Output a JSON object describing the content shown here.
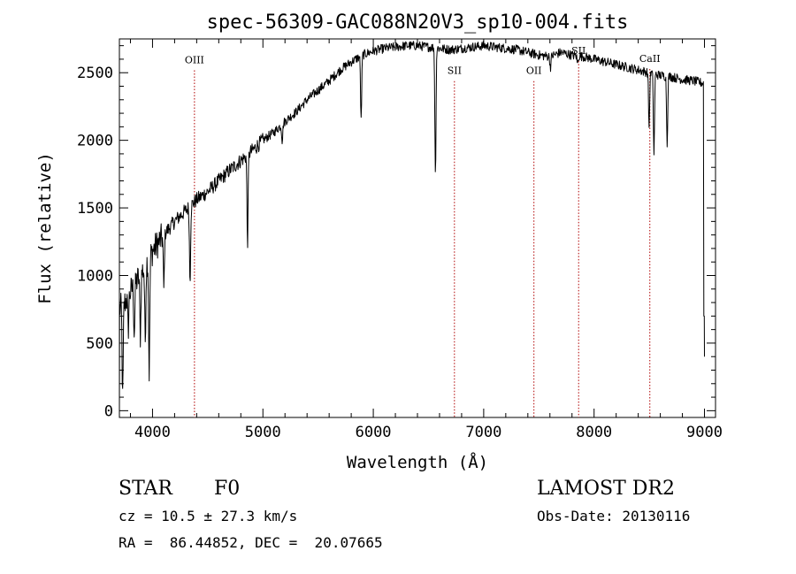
{
  "chart_data": {
    "type": "line",
    "title": "spec-56309-GAC088N20V3_sp10-004.fits",
    "xlabel": "Wavelength (Å)",
    "ylabel": "Flux (relative)",
    "xlim": [
      3700,
      9100
    ],
    "ylim": [
      -50,
      2750
    ],
    "xticks": [
      4000,
      5000,
      6000,
      7000,
      8000,
      9000
    ],
    "yticks": [
      0,
      500,
      1000,
      1500,
      2000,
      2500
    ],
    "grid": false,
    "continuum": {
      "x": [
        3700,
        3750,
        3800,
        3850,
        3900,
        3950,
        4000,
        4100,
        4200,
        4300,
        4400,
        4500,
        4600,
        4700,
        4800,
        4900,
        5000,
        5100,
        5200,
        5300,
        5400,
        5500,
        5600,
        5700,
        5800,
        5900,
        6000,
        6100,
        6200,
        6300,
        6400,
        6500,
        6600,
        6700,
        6800,
        6900,
        7000,
        7100,
        7200,
        7300,
        7400,
        7500,
        7600,
        7700,
        7800,
        7900,
        8000,
        8100,
        8200,
        8300,
        8400,
        8500,
        8600,
        8700,
        8800,
        8900,
        8950,
        9000
      ],
      "y": [
        750,
        800,
        880,
        950,
        1020,
        1100,
        1180,
        1300,
        1400,
        1480,
        1560,
        1620,
        1700,
        1780,
        1850,
        1920,
        2000,
        2060,
        2140,
        2210,
        2300,
        2370,
        2440,
        2520,
        2580,
        2630,
        2660,
        2680,
        2690,
        2700,
        2700,
        2690,
        2680,
        2670,
        2680,
        2690,
        2700,
        2690,
        2680,
        2670,
        2650,
        2630,
        2620,
        2650,
        2630,
        2620,
        2600,
        2580,
        2560,
        2540,
        2520,
        2500,
        2480,
        2470,
        2450,
        2440,
        2430,
        2420
      ]
    },
    "absorption_lines": [
      {
        "x": 3730,
        "depth": 700
      },
      {
        "x": 3780,
        "depth": 250
      },
      {
        "x": 3835,
        "depth": 350
      },
      {
        "x": 3890,
        "depth": 450
      },
      {
        "x": 3934,
        "depth": 550
      },
      {
        "x": 3970,
        "depth": 850
      },
      {
        "x": 4102,
        "depth": 400
      },
      {
        "x": 4340,
        "depth": 550
      },
      {
        "x": 4861,
        "depth": 650
      },
      {
        "x": 5175,
        "depth": 120
      },
      {
        "x": 5890,
        "depth": 480
      },
      {
        "x": 6563,
        "depth": 950
      },
      {
        "x": 7605,
        "depth": 80
      },
      {
        "x": 7850,
        "depth": 60
      },
      {
        "x": 8498,
        "depth": 400
      },
      {
        "x": 8542,
        "depth": 600
      },
      {
        "x": 8662,
        "depth": 500
      }
    ],
    "emission_markers": [
      {
        "label": "OIII",
        "x": 4380,
        "label_y": 2570
      },
      {
        "label": "SII",
        "x": 6735,
        "label_y": 2490
      },
      {
        "label": "OII",
        "x": 7455,
        "label_y": 2490
      },
      {
        "label": "SII",
        "x": 7860,
        "label_y": 2640
      },
      {
        "label": "CaII",
        "x": 8505,
        "label_y": 2580
      }
    ]
  },
  "info": {
    "class_label": "STAR",
    "subclass": "F0",
    "cz": "cz = 10.5 ± 27.3 km/s",
    "coords": "RA =  86.44852, DEC =  20.07665",
    "survey": "LAMOST DR2",
    "obs_date": "Obs-Date: 20130116"
  },
  "colors": {
    "spectrum": "#000000",
    "marker_line": "#b00000",
    "axis": "#000000"
  }
}
